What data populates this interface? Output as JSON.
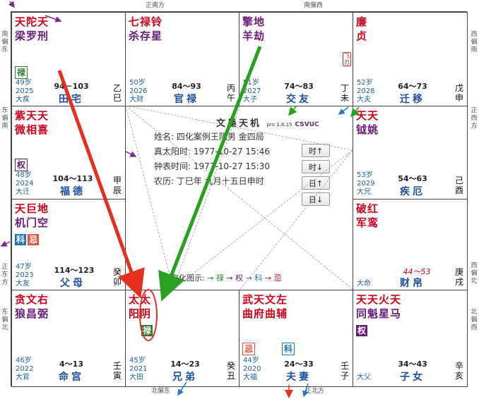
{
  "directions": {
    "top_left": "正南方",
    "top_right": "南偏西",
    "left_top": "南偏东",
    "left_mid": "东偏南",
    "left_low": "正东方",
    "left_bottom": "东偏北",
    "right_top": "西偏南",
    "right_mid": "正西方",
    "right_low": "西偏北",
    "right_bottom": "北偏西",
    "bottom_left": "北偏东",
    "bottom_right": "正北方"
  },
  "palaces": {
    "si": {
      "stars1": "天陀天",
      "stars2": "梁罗刑",
      "badge": "禄",
      "age": "49岁",
      "year": "2025",
      "dayun": "大疾",
      "range": "94－103",
      "name": "田宅",
      "stem": "乙巳"
    },
    "wu": {
      "stars1": "七禄铃",
      "stars2": "杀存星",
      "age": "50岁",
      "year": "2026",
      "dayun": "大财",
      "range": "84～93",
      "name": "官禄",
      "stem": "丙午"
    },
    "wei": {
      "stars1": "擎地",
      "stars2": "羊劫",
      "seal": "飞刃",
      "age": "51岁",
      "year": "2027",
      "dayun": "大子",
      "range": "74～83",
      "name": "交友",
      "stem": "丁未"
    },
    "shen": {
      "stars1": "廉",
      "stars2": "贞",
      "age": "52岁",
      "year": "2028",
      "dayun": "大夫",
      "range": "64～73",
      "name": "迁移",
      "stem": "戊申"
    },
    "chen": {
      "stars1": "紫天天",
      "stars2": "微相喜",
      "badge": "权",
      "age": "48岁",
      "year": "2024",
      "dayun": "大迁",
      "range": "104～113",
      "name": "福德",
      "stem": "甲辰"
    },
    "you": {
      "stars1": "天天",
      "stars2": "钺姚",
      "age": "53岁",
      "year": "2029",
      "dayun": "大兄",
      "range": "54～63",
      "name": "疾厄",
      "stem": "己酉"
    },
    "mao": {
      "stars1": "天巨地",
      "stars2": "机门空",
      "badge1": "科",
      "badge2": "忌",
      "age": "47岁",
      "year": "2023",
      "dayun": "大友",
      "range": "114～123",
      "name": "父母",
      "stem": "癸卯"
    },
    "xu": {
      "stars1": "破红",
      "stars2": "军鸾",
      "range2": "44～53",
      "dayun": "大命",
      "name": "财帛",
      "stem": "庚戌"
    },
    "yin": {
      "stars1": "贪文右",
      "stars2": "狼昌弼",
      "age": "46岁",
      "year": "2022",
      "dayun": "大官",
      "range": "4～13",
      "name": "命宫",
      "stem": "壬寅"
    },
    "chou": {
      "stars1": "太太",
      "stars2": "阳阴",
      "badge": "禄",
      "age": "45岁",
      "year": "2021",
      "dayun": "大田",
      "range": "14～23",
      "name": "兄弟",
      "stem": "癸丑"
    },
    "zi": {
      "stars1": "武天文左",
      "stars2": "曲府曲辅",
      "badge1": "忌",
      "badge2": "科",
      "age": "44岁",
      "year": "2020",
      "dayun": "大福",
      "range": "24～33",
      "name": "夫妻",
      "stem": "壬子"
    },
    "hai": {
      "stars1": "天天火天",
      "stars2": "同魁星马",
      "badge": "权",
      "dayun": "大父",
      "range": "34～43",
      "name": "子女",
      "stem": "辛亥"
    }
  },
  "center": {
    "title": "文墨天机",
    "version": "pro 1.8.15",
    "brand": "CSVUC",
    "name_line": "姓名: 四化案例王阴男 金四局",
    "solar_time": "真太阳时: 1977-10-27 15:46",
    "clock_time": "钟表时间: 1977-10-27 15:30",
    "lunar": "农历: 丁巳年 九月十五日申时",
    "btn_hour_up": "时↑",
    "btn_hour_down": "时↓",
    "btn_day_up": "日↑",
    "btn_day_down": "日↓",
    "legend_label": "自化图示:",
    "legend_lu": "→ 禄",
    "legend_quan": "→ 权",
    "legend_ke": "→ 科",
    "legend_ji": "→ 忌"
  },
  "colors": {
    "red": "#d0021b",
    "purple": "#6a1b7a",
    "green": "#2e7d32",
    "blue": "#1e73be"
  }
}
